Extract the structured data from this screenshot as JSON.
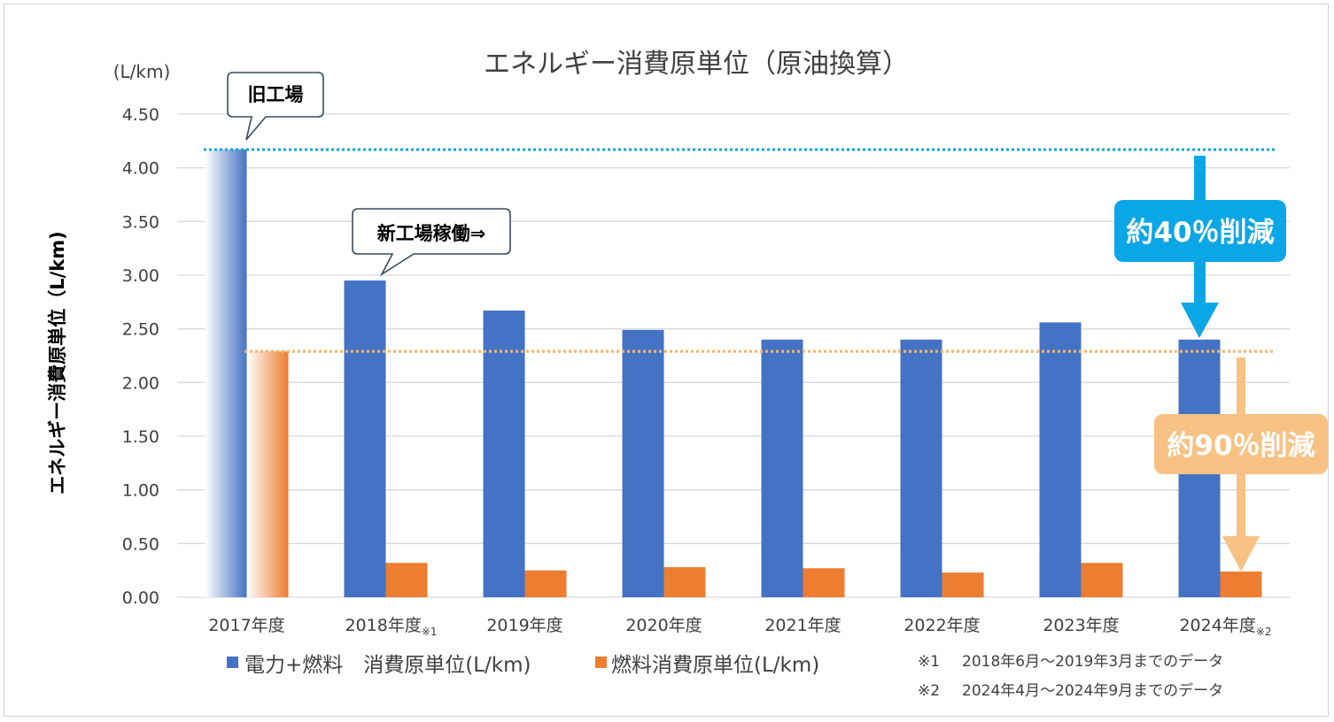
{
  "chart_data": {
    "type": "bar",
    "title": "エネルギー消費原単位（原油換算）",
    "unit_label": "(L/km)",
    "ylabel": "エネルギー消費原単位（L/km)",
    "xlabel": "",
    "ylim": [
      0,
      4.5
    ],
    "yticks": [
      "0.00",
      "0.50",
      "1.00",
      "1.50",
      "2.00",
      "2.50",
      "3.00",
      "3.50",
      "4.00",
      "4.50"
    ],
    "grid": true,
    "categories": [
      {
        "label": "2017年度",
        "sup": ""
      },
      {
        "label": "2018年度",
        "sup": "※1"
      },
      {
        "label": "2019年度",
        "sup": ""
      },
      {
        "label": "2020年度",
        "sup": ""
      },
      {
        "label": "2021年度",
        "sup": ""
      },
      {
        "label": "2022年度",
        "sup": ""
      },
      {
        "label": "2023年度",
        "sup": ""
      },
      {
        "label": "2024年度",
        "sup": "※2"
      }
    ],
    "series": [
      {
        "name": "電力+燃料　消費原単位(L/km)",
        "color": "#4472c4",
        "values": [
          4.17,
          2.95,
          2.67,
          2.49,
          2.4,
          2.4,
          2.56,
          2.4
        ]
      },
      {
        "name": "燃料消費原単位(L/km)",
        "color": "#ed7d31",
        "values": [
          2.29,
          0.32,
          0.25,
          0.28,
          0.27,
          0.23,
          0.32,
          0.24
        ]
      }
    ],
    "reference_lines": [
      {
        "value": 4.17,
        "color": "#1aa7dd"
      },
      {
        "value": 2.29,
        "color": "#f4b66a"
      }
    ],
    "legend_position": "bottom-left",
    "annotations": {
      "old_factory": "旧工場",
      "new_factory": "新工場稼働⇒",
      "reduction_total": "約40％削減",
      "reduction_fuel": "約90％削減",
      "reduction_total_color": "#0ba6e6",
      "reduction_fuel_color": "#f7c283"
    },
    "notes": [
      {
        "mark": "※1",
        "text": "2018年6月～2019年3月までのデータ"
      },
      {
        "mark": "※2",
        "text": "2024年4月～2024年9月までのデータ"
      }
    ]
  }
}
